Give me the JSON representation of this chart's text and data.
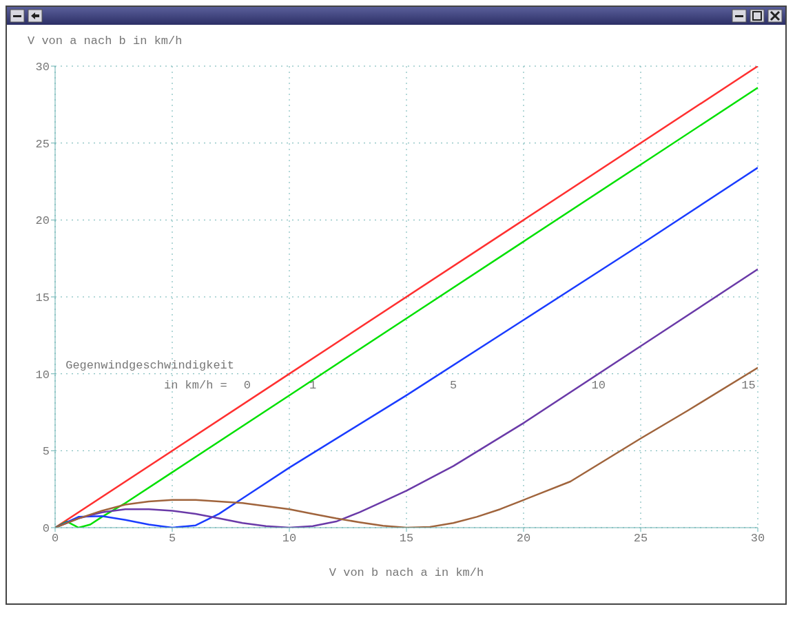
{
  "chart_data": {
    "type": "line",
    "xlabel": "V von b nach a in km/h",
    "ylabel": "V von a nach b in km/h",
    "xlim": [
      0,
      30
    ],
    "ylim": [
      0,
      30
    ],
    "xticks": [
      0,
      5,
      10,
      15,
      20,
      25,
      30
    ],
    "yticks": [
      0,
      5,
      10,
      15,
      20,
      25,
      30
    ],
    "grid": true,
    "marker": "none",
    "line_style": "solid",
    "annotations": [
      "Gegenwindgeschwindigkeit",
      "in km/h ="
    ],
    "series": [
      {
        "name": "0",
        "color": "#ff3030",
        "x": [
          0,
          10,
          20,
          30
        ],
        "values": [
          0,
          10,
          20,
          30
        ]
      },
      {
        "name": "1",
        "color": "#00e000",
        "x": [
          0,
          0.5,
          1,
          1.5,
          2,
          3,
          5,
          10,
          15,
          20,
          25,
          30
        ],
        "values": [
          0,
          0.4,
          0,
          0.2,
          0.7,
          1.6,
          3.6,
          8.6,
          13.6,
          18.6,
          23.6,
          28.6
        ]
      },
      {
        "name": "5",
        "color": "#1a3cff",
        "x": [
          0,
          1,
          2,
          3,
          4,
          5,
          6,
          7,
          8,
          10,
          15,
          20,
          25,
          30
        ],
        "values": [
          0,
          0.7,
          0.75,
          0.5,
          0.2,
          0,
          0.15,
          0.9,
          1.9,
          3.9,
          8.6,
          13.5,
          18.4,
          23.4
        ]
      },
      {
        "name": "10",
        "color": "#6a3aa8",
        "x": [
          0,
          1,
          2,
          3,
          4,
          5,
          6,
          7,
          8,
          9,
          10,
          11,
          12,
          13,
          14,
          15,
          17,
          20,
          25,
          30
        ],
        "values": [
          0,
          0.6,
          1,
          1.2,
          1.2,
          1.1,
          0.9,
          0.6,
          0.3,
          0.1,
          0,
          0.1,
          0.4,
          1,
          1.7,
          2.4,
          4,
          6.8,
          11.8,
          16.8
        ]
      },
      {
        "name": "15",
        "color": "#a0643c",
        "x": [
          0,
          1,
          2,
          3,
          4,
          5,
          6,
          7,
          8,
          9,
          10,
          11,
          12,
          13,
          14,
          15,
          16,
          17,
          18,
          19,
          20,
          22,
          25,
          27,
          30
        ],
        "values": [
          0,
          0.6,
          1.1,
          1.5,
          1.7,
          1.8,
          1.8,
          1.7,
          1.6,
          1.4,
          1.2,
          0.9,
          0.6,
          0.35,
          0.12,
          0,
          0.05,
          0.3,
          0.7,
          1.2,
          1.8,
          3,
          5.8,
          7.6,
          10.4
        ]
      }
    ]
  }
}
